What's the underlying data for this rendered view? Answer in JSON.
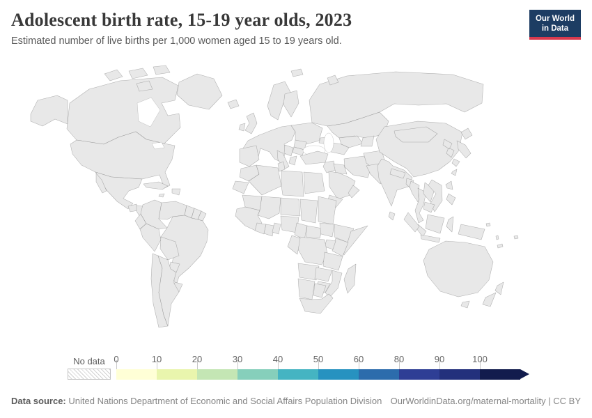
{
  "header": {
    "title": "Adolescent birth rate, 15-19 year olds, 2023",
    "subtitle": "Estimated number of live births per 1,000 women aged 15 to 19 years old.",
    "logo": {
      "line1": "Our World",
      "line2": "in Data",
      "bg": "#1d3d63",
      "accent": "#d93a4e"
    }
  },
  "legend": {
    "no_data_label": "No data",
    "ticks": [
      "0",
      "10",
      "20",
      "30",
      "40",
      "50",
      "60",
      "80",
      "90",
      "100"
    ]
  },
  "footer": {
    "datasource_label": "Data source:",
    "datasource": "United Nations Department of Economic and Social Affairs Population Division",
    "link": "OurWorldinData.org/maternal-mortality | CC BY"
  },
  "chart_data": {
    "type": "choropleth",
    "title": "Adolescent birth rate, 15-19 year olds",
    "year": 2023,
    "unit": "live births per 1,000 women aged 15 to 19",
    "legend_position": "bottom",
    "bins": [
      {
        "label": "0-10",
        "color": "#ffffd6"
      },
      {
        "label": "10-20",
        "color": "#e9f5ad"
      },
      {
        "label": "20-30",
        "color": "#c4e6b4"
      },
      {
        "label": "30-40",
        "color": "#86cfbb"
      },
      {
        "label": "40-50",
        "color": "#45b4c2"
      },
      {
        "label": "50-60",
        "color": "#2792c0"
      },
      {
        "label": "60-80",
        "color": "#2c6cac"
      },
      {
        "label": "80-90",
        "color": "#2e3e95"
      },
      {
        "label": "90-100",
        "color": "#23307c"
      },
      {
        "label": "100+",
        "color": "#121c4d"
      }
    ],
    "no_data_color": "hatch",
    "regions": [
      {
        "id": "canada",
        "name": "Canada",
        "bin": "0-10"
      },
      {
        "id": "arctic-islands",
        "name": "Canadian Arctic",
        "bin": "0-10"
      },
      {
        "id": "alaska",
        "name": "Alaska (US)",
        "bin": "10-20"
      },
      {
        "id": "usa",
        "name": "United States",
        "bin": "10-20"
      },
      {
        "id": "greenland",
        "name": "Greenland",
        "bin": "20-30"
      },
      {
        "id": "mexico",
        "name": "Mexico",
        "bin": "30-40"
      },
      {
        "id": "guatemala",
        "name": "Guatemala",
        "bin": "40-50"
      },
      {
        "id": "honduras-nicaragua",
        "name": "Honduras & Nicaragua",
        "bin": "90-100"
      },
      {
        "id": "costa-rica",
        "name": "Costa Rica",
        "bin": "20-30"
      },
      {
        "id": "panama",
        "name": "Panama",
        "bin": "50-60"
      },
      {
        "id": "cuba",
        "name": "Cuba",
        "bin": "60-80"
      },
      {
        "id": "jamaica",
        "name": "Jamaica",
        "bin": "80-90"
      },
      {
        "id": "hispaniola",
        "name": "Dominican Republic",
        "bin": "60-80"
      },
      {
        "id": "colombia",
        "name": "Colombia",
        "bin": "30-40"
      },
      {
        "id": "venezuela",
        "name": "Venezuela",
        "bin": "60-80"
      },
      {
        "id": "guyana",
        "name": "Guyana",
        "bin": "60-80"
      },
      {
        "id": "suriname",
        "name": "Suriname",
        "bin": "40-50"
      },
      {
        "id": "french-guiana",
        "name": "French Guiana",
        "bin": "0-10"
      },
      {
        "id": "ecuador",
        "name": "Ecuador",
        "bin": "20-30"
      },
      {
        "id": "peru",
        "name": "Peru",
        "bin": "20-30"
      },
      {
        "id": "brazil",
        "name": "Brazil",
        "bin": "40-50"
      },
      {
        "id": "bolivia",
        "name": "Bolivia",
        "bin": "no-data"
      },
      {
        "id": "paraguay",
        "name": "Paraguay",
        "bin": "40-50"
      },
      {
        "id": "uruguay",
        "name": "Uruguay",
        "bin": "40-50"
      },
      {
        "id": "chile",
        "name": "Chile",
        "bin": "0-10"
      },
      {
        "id": "argentina",
        "name": "Argentina",
        "bin": "20-30"
      },
      {
        "id": "iceland",
        "name": "Iceland",
        "bin": "10-20"
      },
      {
        "id": "uk",
        "name": "United Kingdom",
        "bin": "0-10"
      },
      {
        "id": "ireland",
        "name": "Ireland",
        "bin": "0-10"
      },
      {
        "id": "norway-sweden",
        "name": "Norway & Sweden",
        "bin": "0-10"
      },
      {
        "id": "finland",
        "name": "Finland",
        "bin": "10-20"
      },
      {
        "id": "europe-west",
        "name": "Western Europe",
        "bin": "0-10"
      },
      {
        "id": "iberia",
        "name": "Spain & Portugal",
        "bin": "0-10"
      },
      {
        "id": "italy",
        "name": "Italy",
        "bin": "0-10"
      },
      {
        "id": "central-europe",
        "name": "Central & Eastern Europe",
        "bin": "10-20"
      },
      {
        "id": "romania",
        "name": "Romania",
        "bin": "40-50"
      },
      {
        "id": "bulgaria",
        "name": "Bulgaria",
        "bin": "30-40"
      },
      {
        "id": "balkans",
        "name": "Balkans",
        "bin": "10-20"
      },
      {
        "id": "greece",
        "name": "Greece",
        "bin": "0-10"
      },
      {
        "id": "russia",
        "name": "Russia",
        "bin": "10-20"
      },
      {
        "id": "svalbard",
        "name": "Svalbard",
        "bin": "10-20"
      },
      {
        "id": "novaya-zemlya",
        "name": "Novaya Zemlya",
        "bin": "10-20"
      },
      {
        "id": "kazakhstan",
        "name": "Kazakhstan",
        "bin": "20-30"
      },
      {
        "id": "uzbekistan",
        "name": "Uzbekistan",
        "bin": "30-40"
      },
      {
        "id": "turkmenistan",
        "name": "Turkmenistan",
        "bin": "no-data"
      },
      {
        "id": "kyrgyz-tajik",
        "name": "Kyrgyzstan & Tajikistan",
        "bin": "40-50"
      },
      {
        "id": "caucasus",
        "name": "Caucasus",
        "bin": "30-40"
      },
      {
        "id": "turkey",
        "name": "Turkey",
        "bin": "10-20"
      },
      {
        "id": "syria-levant",
        "name": "Syria",
        "bin": "no-data"
      },
      {
        "id": "iraq",
        "name": "Iraq",
        "bin": "20-30"
      },
      {
        "id": "iran",
        "name": "Iran",
        "bin": "20-30"
      },
      {
        "id": "saudi-arabia",
        "name": "Saudi Arabia",
        "bin": "0-10"
      },
      {
        "id": "yemen",
        "name": "Yemen",
        "bin": "60-80"
      },
      {
        "id": "oman",
        "name": "Oman",
        "bin": "0-10"
      },
      {
        "id": "afghanistan",
        "name": "Afghanistan",
        "bin": "60-80"
      },
      {
        "id": "pakistan",
        "name": "Pakistan",
        "bin": "50-60"
      },
      {
        "id": "india",
        "name": "India",
        "bin": "10-20"
      },
      {
        "id": "nepal",
        "name": "Nepal",
        "bin": "80-90"
      },
      {
        "id": "bangladesh",
        "name": "Bangladesh",
        "bin": "80-90"
      },
      {
        "id": "sri-lanka",
        "name": "Sri Lanka",
        "bin": "no-data"
      },
      {
        "id": "china",
        "name": "China",
        "bin": "0-10"
      },
      {
        "id": "mongolia",
        "name": "Mongolia",
        "bin": "10-20"
      },
      {
        "id": "myanmar",
        "name": "Myanmar",
        "bin": "no-data"
      },
      {
        "id": "thailand",
        "name": "Thailand",
        "bin": "0-10"
      },
      {
        "id": "laos",
        "name": "Laos",
        "bin": "90-100"
      },
      {
        "id": "vietnam",
        "name": "Vietnam",
        "bin": "20-30"
      },
      {
        "id": "cambodia",
        "name": "Cambodia",
        "bin": "40-50"
      },
      {
        "id": "malaysia",
        "name": "Malaysia",
        "bin": "0-10"
      },
      {
        "id": "indonesia",
        "name": "Indonesia",
        "bin": "no-data"
      },
      {
        "id": "new-guinea",
        "name": "Papua New Guinea",
        "bin": "no-data"
      },
      {
        "id": "philippines",
        "name": "Philippines",
        "bin": "20-30"
      },
      {
        "id": "taiwan",
        "name": "Taiwan",
        "bin": "10-20"
      },
      {
        "id": "japan",
        "name": "Japan",
        "bin": "0-10"
      },
      {
        "id": "south-korea",
        "name": "South Korea",
        "bin": "0-10"
      },
      {
        "id": "north-korea",
        "name": "North Korea",
        "bin": "no-data"
      },
      {
        "id": "morocco",
        "name": "Morocco",
        "bin": "10-20"
      },
      {
        "id": "western-sahara",
        "name": "Western Sahara",
        "bin": "no-data"
      },
      {
        "id": "algeria",
        "name": "Algeria",
        "bin": "20-30"
      },
      {
        "id": "tunisia",
        "name": "Tunisia",
        "bin": "10-20"
      },
      {
        "id": "libya",
        "name": "Libya",
        "bin": "no-data"
      },
      {
        "id": "egypt",
        "name": "Egypt",
        "bin": "30-40"
      },
      {
        "id": "mauritania",
        "name": "Mauritania",
        "bin": "80-90"
      },
      {
        "id": "mali",
        "name": "Mali",
        "bin": "100+"
      },
      {
        "id": "niger",
        "name": "Niger",
        "bin": "100+"
      },
      {
        "id": "chad",
        "name": "Chad",
        "bin": "100+"
      },
      {
        "id": "sudan",
        "name": "Sudan",
        "bin": "no-data"
      },
      {
        "id": "senegal-guinea",
        "name": "Senegal & Guinea",
        "bin": "100+"
      },
      {
        "id": "cote-divoire",
        "name": "Cote d'Ivoire",
        "bin": "100+"
      },
      {
        "id": "ghana",
        "name": "Ghana",
        "bin": "60-80"
      },
      {
        "id": "benin-togo",
        "name": "Benin & Togo",
        "bin": "80-90"
      },
      {
        "id": "nigeria",
        "name": "Nigeria",
        "bin": "60-80"
      },
      {
        "id": "cameroon",
        "name": "Cameroon",
        "bin": "100+"
      },
      {
        "id": "central-african-republic",
        "name": "Central African Republic",
        "bin": "100+"
      },
      {
        "id": "south-sudan",
        "name": "South Sudan",
        "bin": "no-data"
      },
      {
        "id": "ethiopia",
        "name": "Ethiopia",
        "bin": "no-data"
      },
      {
        "id": "somalia",
        "name": "Somalia",
        "bin": "no-data"
      },
      {
        "id": "kenya",
        "name": "Kenya",
        "bin": "40-50"
      },
      {
        "id": "uganda",
        "name": "Uganda",
        "bin": "90-100"
      },
      {
        "id": "drc",
        "name": "Democratic Republic of Congo",
        "bin": "no-data"
      },
      {
        "id": "congo-gabon",
        "name": "Congo & Gabon",
        "bin": "90-100"
      },
      {
        "id": "tanzania",
        "name": "Tanzania",
        "bin": "100+"
      },
      {
        "id": "angola",
        "name": "Angola",
        "bin": "no-data"
      },
      {
        "id": "zambia",
        "name": "Zambia",
        "bin": "100+"
      },
      {
        "id": "mozambique",
        "name": "Mozambique",
        "bin": "100+"
      },
      {
        "id": "madagascar",
        "name": "Madagascar",
        "bin": "100+"
      },
      {
        "id": "zimbabwe",
        "name": "Zimbabwe",
        "bin": "80-90"
      },
      {
        "id": "namibia",
        "name": "Namibia",
        "bin": "20-30"
      },
      {
        "id": "botswana",
        "name": "Botswana",
        "bin": "20-30"
      },
      {
        "id": "south-africa",
        "name": "South Africa",
        "bin": "40-50"
      },
      {
        "id": "australia",
        "name": "Australia",
        "bin": "0-10"
      },
      {
        "id": "tasmania",
        "name": "Tasmania",
        "bin": "0-10"
      },
      {
        "id": "new-zealand",
        "name": "New Zealand",
        "bin": "10-20"
      },
      {
        "id": "fiji",
        "name": "Fiji",
        "bin": "40-50"
      },
      {
        "id": "solomon-islands",
        "name": "Solomon Islands",
        "bin": "40-50"
      },
      {
        "id": "vanuatu",
        "name": "Vanuatu",
        "bin": "40-50"
      },
      {
        "id": "new-caledonia",
        "name": "New Caledonia",
        "bin": "no-data"
      }
    ]
  }
}
